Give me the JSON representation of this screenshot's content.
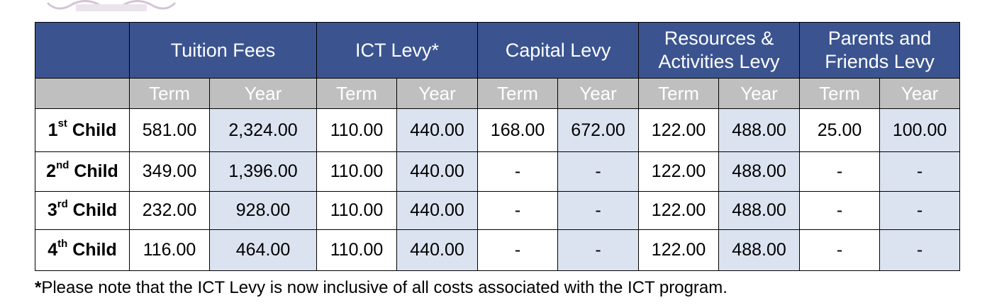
{
  "header": {
    "groups": [
      {
        "label": "Tuition Fees"
      },
      {
        "label": "ICT Levy*"
      },
      {
        "label": "Capital Levy"
      },
      {
        "label": "Resources & Activities Levy"
      },
      {
        "label": "Parents and Friends Levy"
      }
    ],
    "sub": [
      "Term",
      "Year",
      "Term",
      "Year",
      "Term",
      "Year",
      "Term",
      "Year",
      "Term",
      "Year"
    ]
  },
  "rows": [
    {
      "num": "1",
      "sup": "st",
      "suffix": " Child",
      "values": [
        "581.00",
        "2,324.00",
        "110.00",
        "440.00",
        "168.00",
        "672.00",
        "122.00",
        "488.00",
        "25.00",
        "100.00"
      ]
    },
    {
      "num": "2",
      "sup": "nd",
      "suffix": " Child",
      "values": [
        "349.00",
        "1,396.00",
        "110.00",
        "440.00",
        "-",
        "-",
        "122.00",
        "488.00",
        "-",
        "-"
      ]
    },
    {
      "num": "3",
      "sup": "rd",
      "suffix": " Child",
      "values": [
        "232.00",
        "928.00",
        "110.00",
        "440.00",
        "-",
        "-",
        "122.00",
        "488.00",
        "-",
        "-"
      ]
    },
    {
      "num": "4",
      "sup": "th",
      "suffix": " Child",
      "values": [
        "116.00",
        "464.00",
        "110.00",
        "440.00",
        "-",
        "-",
        "122.00",
        "488.00",
        "-",
        "-"
      ]
    }
  ],
  "footnote": {
    "star": "*",
    "text": "Please note that the ICT Levy is now inclusive of all costs associated with the ICT program."
  },
  "colors": {
    "header_bg": "#3b5490",
    "subheader_bg": "#bfbfbf",
    "year_cell_bg": "#dce3f0"
  }
}
